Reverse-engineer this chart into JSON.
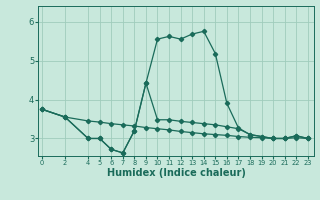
{
  "bg_color": "#c8e8dc",
  "line_color": "#1a6b5a",
  "grid_color": "#a0ccbc",
  "xlabel": "Humidex (Indice chaleur)",
  "xlabel_fontsize": 7.0,
  "yticks": [
    3,
    4,
    5,
    6
  ],
  "xtick_labels": [
    "0",
    "2",
    "4",
    "5",
    "6",
    "7",
    "8",
    "9",
    "10",
    "11",
    "12",
    "13",
    "14",
    "15",
    "16",
    "17",
    "18",
    "19",
    "20",
    "21",
    "22",
    "23"
  ],
  "xtick_positions": [
    0,
    2,
    4,
    5,
    6,
    7,
    8,
    9,
    10,
    11,
    12,
    13,
    14,
    15,
    16,
    17,
    18,
    19,
    20,
    21,
    22,
    23
  ],
  "ylim": [
    2.55,
    6.4
  ],
  "xlim": [
    -0.3,
    23.5
  ],
  "line_main_x": [
    0,
    2,
    4,
    5,
    6,
    7,
    8,
    9,
    10,
    11,
    12,
    13,
    14,
    15,
    16,
    17,
    18,
    19,
    20,
    21,
    22,
    23
  ],
  "line_main_y": [
    3.75,
    3.55,
    3.0,
    3.0,
    2.72,
    2.63,
    3.2,
    4.42,
    5.55,
    5.62,
    5.55,
    5.68,
    5.75,
    5.18,
    3.9,
    3.27,
    3.1,
    3.05,
    3.0,
    3.0,
    3.07,
    3.0
  ],
  "line_low_x": [
    0,
    2,
    4,
    5,
    6,
    7,
    8,
    9,
    10,
    11,
    12,
    13,
    14,
    15,
    16,
    17,
    18,
    19,
    20,
    21,
    22,
    23
  ],
  "line_low_y": [
    3.75,
    3.55,
    3.0,
    3.0,
    2.72,
    2.63,
    3.2,
    4.42,
    3.48,
    3.48,
    3.44,
    3.41,
    3.38,
    3.35,
    3.3,
    3.25,
    3.1,
    3.05,
    3.0,
    3.0,
    3.07,
    3.0
  ],
  "line_diag_x": [
    0,
    2,
    4,
    5,
    6,
    7,
    8,
    9,
    10,
    11,
    12,
    13,
    14,
    15,
    16,
    17,
    18,
    19,
    20,
    21,
    22,
    23
  ],
  "line_diag_y": [
    3.75,
    3.55,
    3.45,
    3.42,
    3.38,
    3.35,
    3.32,
    3.28,
    3.25,
    3.22,
    3.18,
    3.15,
    3.12,
    3.1,
    3.08,
    3.05,
    3.03,
    3.02,
    3.0,
    3.0,
    3.02,
    3.0
  ]
}
